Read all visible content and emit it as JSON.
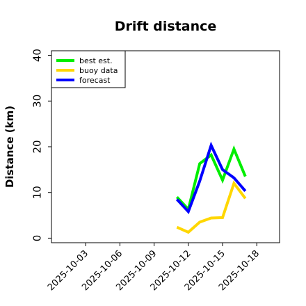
{
  "chart_data": {
    "type": "line",
    "title": "Drift distance",
    "xlabel": "",
    "ylabel": "Distance (km)",
    "ylim": [
      -1,
      41
    ],
    "xlim": [
      "2025-09-30",
      "2025-10-20"
    ],
    "xticks": [
      "2025-10-03",
      "2025-10-06",
      "2025-10-09",
      "2025-10-12",
      "2025-10-15",
      "2025-10-18"
    ],
    "xtick_colors": [
      "#000000",
      "#000000",
      "#1a8f1a",
      "#000000",
      "#000000",
      "#000000"
    ],
    "yticks": [
      0,
      10,
      20,
      30,
      40
    ],
    "grid": false,
    "legend_position": "top-left",
    "series": [
      {
        "name": "best est.",
        "color": "#00ee00",
        "x": [
          "2025-10-11",
          "2025-10-12",
          "2025-10-13",
          "2025-10-14",
          "2025-10-15",
          "2025-10-16",
          "2025-10-17"
        ],
        "y": [
          9,
          6.3,
          16.3,
          18.2,
          12.7,
          19.5,
          13.5
        ]
      },
      {
        "name": "buoy data",
        "color": "#ffd700",
        "x": [
          "2025-10-11",
          "2025-10-12",
          "2025-10-13",
          "2025-10-14",
          "2025-10-15",
          "2025-10-16",
          "2025-10-17"
        ],
        "y": [
          2.4,
          1.3,
          3.5,
          4.4,
          4.5,
          12,
          8.7
        ]
      },
      {
        "name": "forecast",
        "color": "#0000ff",
        "x": [
          "2025-10-11",
          "2025-10-12",
          "2025-10-13",
          "2025-10-14",
          "2025-10-15",
          "2025-10-16",
          "2025-10-17"
        ],
        "y": [
          8.5,
          5.8,
          12.5,
          20.3,
          15,
          13.2,
          10.3
        ]
      }
    ]
  }
}
